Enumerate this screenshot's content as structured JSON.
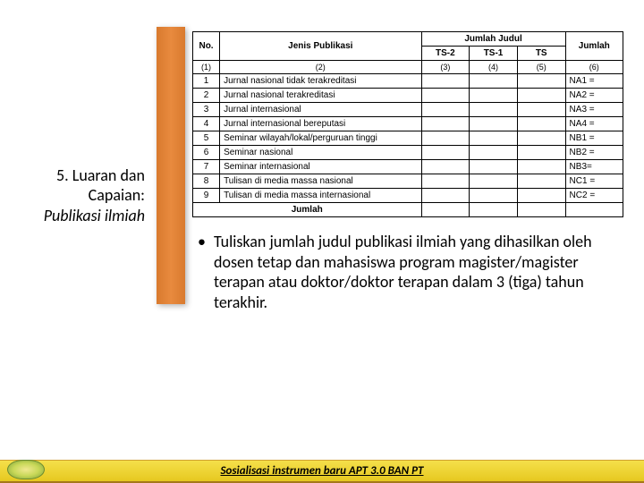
{
  "title": {
    "line1": "5. Luaran dan Capaian:",
    "line2": "Publikasi ilmiah"
  },
  "table": {
    "headers": {
      "no": "No.",
      "jenis": "Jenis Publikasi",
      "jumlah_judul": "Jumlah Judul",
      "ts2": "TS-2",
      "ts1": "TS-1",
      "ts": "TS",
      "jumlah": "Jumlah"
    },
    "colnums": {
      "c1": "(1)",
      "c2": "(2)",
      "c3": "(3)",
      "c4": "(4)",
      "c5": "(5)",
      "c6": "(6)"
    },
    "rows": [
      {
        "no": "1",
        "jenis": "Jurnal nasional tidak terakreditasi",
        "jumlah": "NA1 ="
      },
      {
        "no": "2",
        "jenis": "Jurnal nasional terakreditasi",
        "jumlah": "NA2 ="
      },
      {
        "no": "3",
        "jenis": "Jurnal internasional",
        "jumlah": "NA3 ="
      },
      {
        "no": "4",
        "jenis": "Jurnal internasional bereputasi",
        "jumlah": "NA4 ="
      },
      {
        "no": "5",
        "jenis": "Seminar wilayah/lokal/perguruan tinggi",
        "jumlah": "NB1 ="
      },
      {
        "no": "6",
        "jenis": "Seminar nasional",
        "jumlah": "NB2 ="
      },
      {
        "no": "7",
        "jenis": "Seminar internasional",
        "jumlah": "NB3="
      },
      {
        "no": "8",
        "jenis": "Tulisan di media massa nasional",
        "jumlah": "NC1 ="
      },
      {
        "no": "9",
        "jenis": "Tulisan di media massa internasional",
        "jumlah": "NC2 ="
      }
    ],
    "total_label": "Jumlah"
  },
  "bullet": "Tuliskan jumlah judul publikasi ilmiah yang dihasilkan oleh dosen tetap dan mahasiswa program magister/magister terapan atau doktor/doktor terapan dalam 3 (tiga) tahun terakhir.",
  "footer": "Sosialisasi instrumen baru APT 3.0 BAN PT",
  "colors": {
    "accent": "#e0832e",
    "footer_bg": "#ecd433",
    "border": "#000000"
  }
}
